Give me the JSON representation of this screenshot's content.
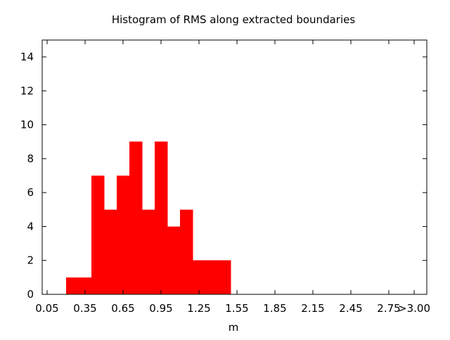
{
  "chart_data": {
    "type": "bar",
    "title": "Histogram of RMS along extracted boundaries",
    "xlabel": "m",
    "ylabel": "",
    "bin_width": 0.1,
    "bins": [
      {
        "x": 0.25,
        "value": 1
      },
      {
        "x": 0.35,
        "value": 1
      },
      {
        "x": 0.45,
        "value": 7
      },
      {
        "x": 0.55,
        "value": 5
      },
      {
        "x": 0.65,
        "value": 7
      },
      {
        "x": 0.75,
        "value": 9
      },
      {
        "x": 0.85,
        "value": 5
      },
      {
        "x": 0.95,
        "value": 9
      },
      {
        "x": 1.05,
        "value": 4
      },
      {
        "x": 1.15,
        "value": 5
      },
      {
        "x": 1.25,
        "value": 2
      },
      {
        "x": 1.35,
        "value": 2
      },
      {
        "x": 1.45,
        "value": 2
      }
    ],
    "xlim": [
      0.0,
      3.05
    ],
    "ylim": [
      0,
      15
    ],
    "x_ticks": [
      {
        "value": 0.05,
        "label": "0.05"
      },
      {
        "value": 0.35,
        "label": "0.35"
      },
      {
        "value": 0.65,
        "label": "0.65"
      },
      {
        "value": 0.95,
        "label": "0.95"
      },
      {
        "value": 1.25,
        "label": "1.25"
      },
      {
        "value": 1.55,
        "label": "1.55"
      },
      {
        "value": 1.85,
        "label": "1.85"
      },
      {
        "value": 2.15,
        "label": "2.15"
      },
      {
        "value": 2.45,
        "label": "2.45"
      },
      {
        "value": 2.75,
        "label": "2.75"
      },
      {
        "value": 2.95,
        "label": ">3.00"
      }
    ],
    "y_ticks": [
      {
        "value": 0,
        "label": "0"
      },
      {
        "value": 2,
        "label": "2"
      },
      {
        "value": 4,
        "label": "4"
      },
      {
        "value": 6,
        "label": "6"
      },
      {
        "value": 8,
        "label": "8"
      },
      {
        "value": 10,
        "label": "10"
      },
      {
        "value": 12,
        "label": "12"
      },
      {
        "value": 14,
        "label": "14"
      }
    ],
    "bar_color": "#ff0000",
    "grid": false,
    "legend": "none"
  }
}
